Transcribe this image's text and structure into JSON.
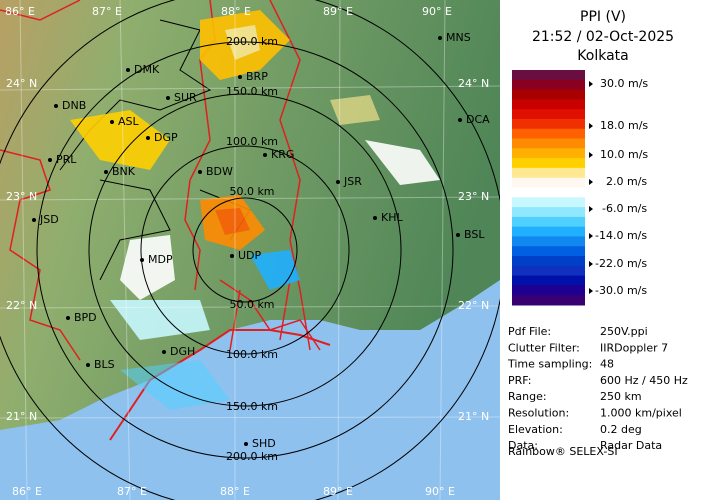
{
  "header": {
    "title": "PPI (V)",
    "time": "21:52 / 02-Oct-2025",
    "station": "Kolkata"
  },
  "legend": {
    "colors": [
      "#6a0d40",
      "#8a0020",
      "#a80000",
      "#c80000",
      "#e01000",
      "#f03000",
      "#ff6000",
      "#ff8c00",
      "#ffb000",
      "#ffd000",
      "#ffe890",
      "#fff8f0",
      "#ffffff",
      "#c8f8ff",
      "#90e8ff",
      "#50d0ff",
      "#20b0ff",
      "#1088f0",
      "#0060e0",
      "#0040c8",
      "#1030c0",
      "#0010a8",
      "#200090",
      "#380070"
    ],
    "labels": [
      "30.0 m/s",
      "18.0 m/s",
      "10.0 m/s",
      "2.0 m/s",
      "-6.0 m/s",
      "-14.0 m/s",
      "-22.0 m/s",
      "-30.0 m/s"
    ]
  },
  "info": [
    [
      "Pdf File:",
      "250V.ppi"
    ],
    [
      "Clutter Filter:",
      "IIRDoppler 7"
    ],
    [
      "Time sampling:",
      "48"
    ],
    [
      "PRF:",
      "600 Hz / 450 Hz"
    ],
    [
      "Range:",
      "250 km"
    ],
    [
      "Resolution:",
      "1.000 km/pixel"
    ],
    [
      "Elevation:",
      "0.2 deg"
    ],
    [
      "Data:",
      "Radar Data"
    ]
  ],
  "footer": "Rainbow® SELEX-SI",
  "map": {
    "lon_labels": [
      "86° E",
      "87° E",
      "88° E",
      "89° E",
      "90° E"
    ],
    "lat_labels": [
      "24° N",
      "23° N",
      "22° N",
      "21° N"
    ],
    "range_labels": [
      "50.0 km",
      "100.0 km",
      "150.0 km",
      "200.0 km"
    ],
    "cities": [
      "MNS",
      "DMK",
      "BRP",
      "SUR",
      "DNB",
      "ASL",
      "DGP",
      "DCA",
      "KRG",
      "PRL",
      "BNK",
      "BDW",
      "JSR",
      "KHL",
      "JSD",
      "BSL",
      "MDP",
      "UDP",
      "BPD",
      "DGH",
      "BLS",
      "SHD"
    ]
  }
}
